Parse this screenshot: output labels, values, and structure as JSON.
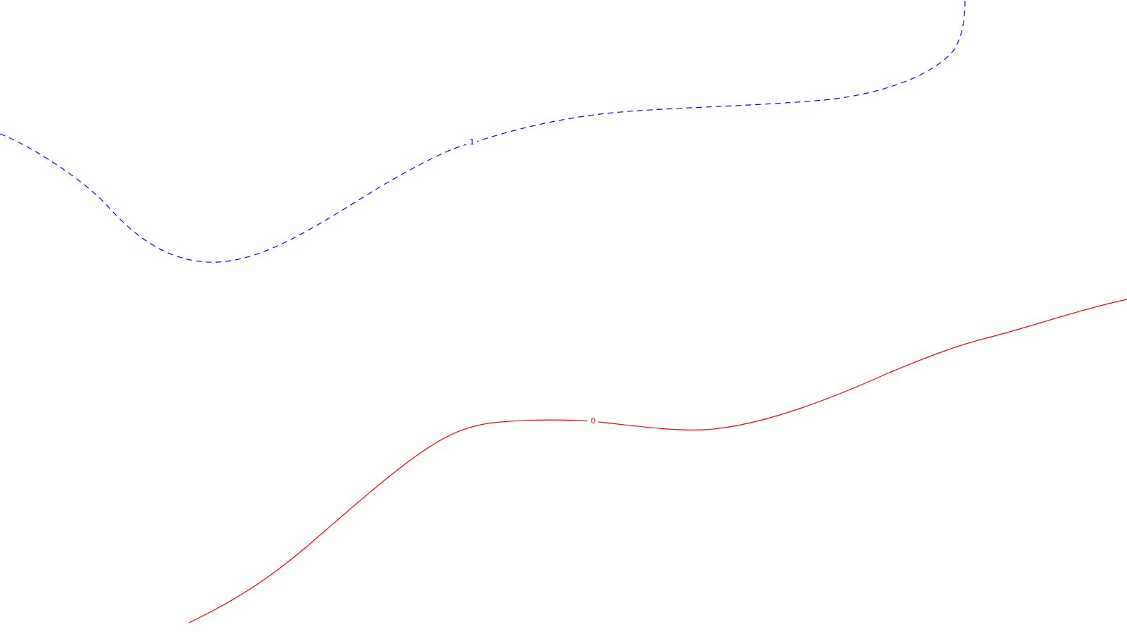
{
  "chart_data": {
    "type": "line",
    "title": "",
    "xlabel": "",
    "ylabel": "",
    "grid": false,
    "legend": "none",
    "series": [
      {
        "label": "1",
        "color": "#0000ff",
        "style": "dashed"
      },
      {
        "label": "0",
        "color": "#ff0000",
        "style": "solid"
      }
    ]
  }
}
